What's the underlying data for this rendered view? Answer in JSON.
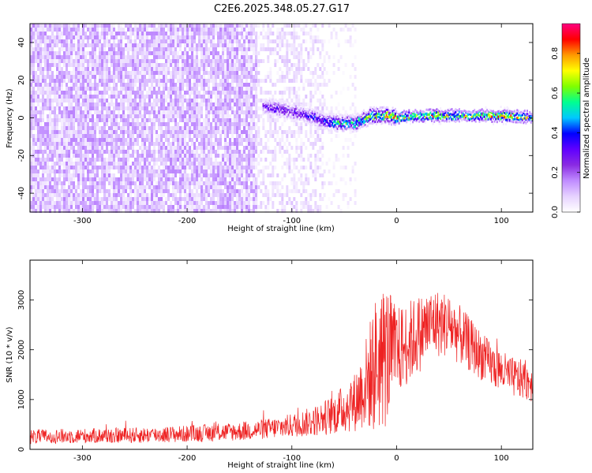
{
  "title": "C2E6.2025.348.05.27.G17",
  "chart_data": [
    {
      "type": "heatmap",
      "xlabel": "Height of straight line (km)",
      "ylabel": "Frequency (Hz)",
      "xlim": [
        -350,
        130
      ],
      "ylim": [
        -50,
        50
      ],
      "xticks": [
        -300,
        -200,
        -100,
        0,
        100
      ],
      "yticks": [
        -40,
        -20,
        0,
        20,
        40
      ],
      "colorbar": {
        "label": "Normalized spectral amplitude",
        "ticks": [
          0.0,
          0.2,
          0.4,
          0.6,
          0.8
        ],
        "range": [
          0,
          0.95
        ],
        "colormap": [
          "#ffffff",
          "#e6d2ff",
          "#c08cff",
          "#8a2be2",
          "#6000ff",
          "#0000ff",
          "#00c8ff",
          "#00ff90",
          "#7fff00",
          "#ffff00",
          "#ff9900",
          "#ff0000",
          "#ff0080"
        ]
      },
      "noise_regions": [
        {
          "x": [
            -350,
            -135
          ],
          "amplitude": 0.12,
          "density": 0.9
        },
        {
          "x": [
            -135,
            -70
          ],
          "amplitude": 0.07,
          "density": 0.5
        },
        {
          "x": [
            -70,
            -40
          ],
          "amplitude": 0.04,
          "density": 0.2
        }
      ],
      "signal_track": {
        "x": [
          -128,
          -115,
          -100,
          -85,
          -70,
          -55,
          -40,
          -25,
          -10,
          0,
          20,
          40,
          60,
          80,
          100,
          130
        ],
        "freq": [
          6,
          5,
          3,
          1,
          -2,
          -3,
          -3,
          1,
          1,
          0,
          1,
          1,
          1,
          1,
          1,
          0
        ],
        "amplitude": [
          0.3,
          0.35,
          0.3,
          0.35,
          0.4,
          0.55,
          0.55,
          0.65,
          0.75,
          0.75,
          0.7,
          0.8,
          0.65,
          0.7,
          0.85,
          0.6
        ]
      }
    },
    {
      "type": "line",
      "xlabel": "Height of straight line (km)",
      "ylabel": "SNR (10 * v/v)",
      "xlim": [
        -350,
        130
      ],
      "ylim": [
        0,
        3800
      ],
      "xticks": [
        -300,
        -200,
        -100,
        0,
        100
      ],
      "yticks": [
        0,
        1000,
        2000,
        3000
      ],
      "color": "#ee2222",
      "envelope": {
        "x": [
          -350,
          -300,
          -250,
          -200,
          -150,
          -120,
          -100,
          -80,
          -60,
          -40,
          -30,
          -20,
          -10,
          0,
          20,
          35,
          50,
          70,
          90,
          110,
          130
        ],
        "mean": [
          250,
          270,
          280,
          310,
          360,
          420,
          480,
          560,
          700,
          950,
          1300,
          1700,
          1900,
          1950,
          2300,
          2550,
          2500,
          2100,
          1700,
          1450,
          1350
        ],
        "spread": [
          150,
          150,
          160,
          170,
          190,
          210,
          240,
          300,
          400,
          600,
          900,
          1400,
          1500,
          900,
          800,
          700,
          650,
          550,
          450,
          400,
          400
        ]
      }
    }
  ]
}
